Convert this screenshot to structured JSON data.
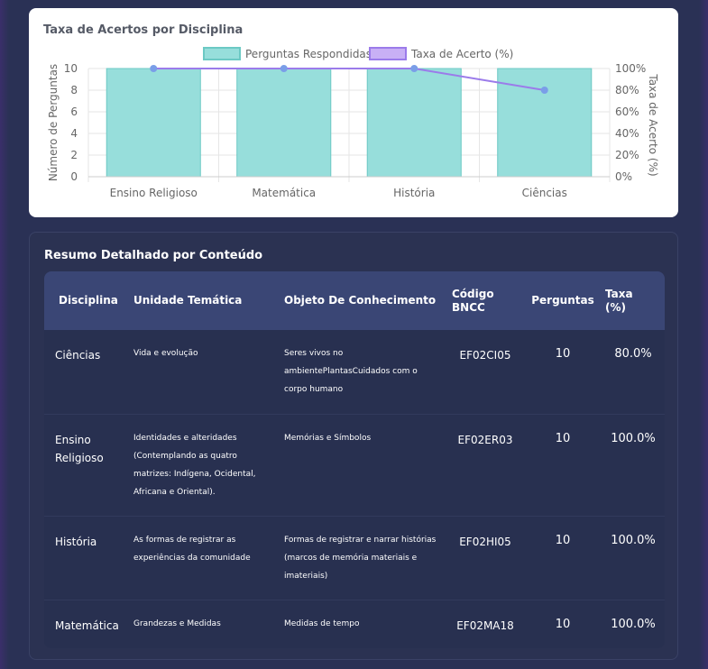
{
  "chart_data": {
    "type": "bar",
    "title": "Taxa de Acertos por Disciplina",
    "categories": [
      "Ensino Religioso",
      "Matemática",
      "História",
      "Ciências"
    ],
    "series": [
      {
        "name": "Perguntas Respondidas",
        "type": "bar",
        "axis": "left",
        "values": [
          10,
          10,
          10,
          10
        ],
        "color": "#97dedb"
      },
      {
        "name": "Taxa de Acerto (%)",
        "type": "line",
        "axis": "right",
        "values": [
          100,
          100,
          100,
          80
        ],
        "color": "#9b7bea"
      }
    ],
    "y_left": {
      "label": "Número de Perguntas",
      "range": [
        0,
        10
      ],
      "ticks": [
        "0",
        "2",
        "4",
        "6",
        "8",
        "10"
      ]
    },
    "y_right": {
      "label": "Taxa de Acerto (%)",
      "range": [
        0,
        100
      ],
      "ticks": [
        "0%",
        "20%",
        "40%",
        "60%",
        "80%",
        "100%"
      ]
    },
    "legend": "top",
    "grid": true
  },
  "summary": {
    "title": "Resumo Detalhado por Conteúdo",
    "headers": {
      "disciplina": "Disciplina",
      "unidade": "Unidade Temática",
      "objeto": "Objeto De Conhecimento",
      "codigo_1": "Código",
      "codigo_2": "BNCC",
      "perguntas": "Perguntas",
      "taxa_1": "Taxa",
      "taxa_2": "(%)"
    },
    "rows": [
      {
        "disciplina": "Ciências",
        "unidade": "Vida e evolução",
        "objeto": "Seres vivos no ambientePlantasCuidados com o corpo humano",
        "codigo": "EF02CI05",
        "perguntas": "10",
        "taxa": "80.0%"
      },
      {
        "disciplina": "Ensino Religioso",
        "unidade": "Identidades e alteridades (Contemplando as quatro matrizes: Indígena, Ocidental, Africana e Oriental).",
        "objeto": "Memórias e Símbolos",
        "codigo": "EF02ER03",
        "perguntas": "10",
        "taxa": "100.0%"
      },
      {
        "disciplina": "História",
        "unidade": "As formas de registrar as experiências da comunidade",
        "objeto": "Formas de registrar e narrar histórias (marcos de memória materiais e imateriais)",
        "codigo": "EF02HI05",
        "perguntas": "10",
        "taxa": "100.0%"
      },
      {
        "disciplina": "Matemática",
        "unidade": "Grandezas e Medidas",
        "objeto": "Medidas de tempo",
        "codigo": "EF02MA18",
        "perguntas": "10",
        "taxa": "100.0%"
      }
    ]
  }
}
